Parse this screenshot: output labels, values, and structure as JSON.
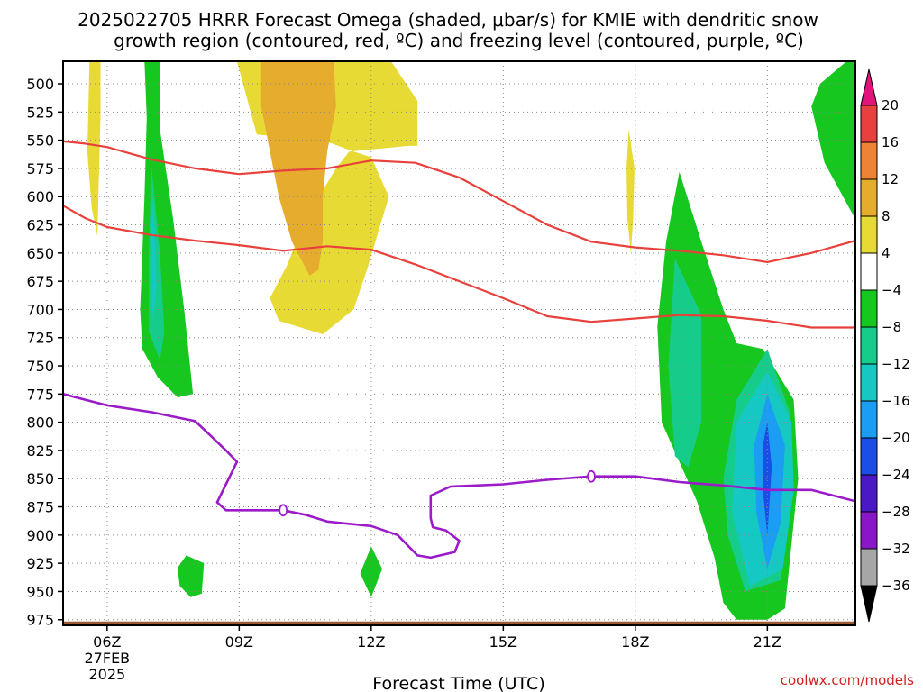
{
  "title_line1": "2025022705 HRRR Forecast Omega (shaded, μbar/s) for KMIE with dendritic snow",
  "title_line2": "growth region (contoured, red, ºC) and freezing level (contoured, purple, ºC)",
  "credit": "coolwx.com/models",
  "colors": {
    "snow_growth_line": "#e8413c",
    "freezing_line": "#9b1bc9",
    "ground": "#9b5a34",
    "grid": "#888888"
  },
  "chart_data": {
    "type": "heatmap",
    "title": "2025022705 HRRR Forecast Omega (shaded, μbar/s) for KMIE with dendritic snow growth region (contoured, red, ºC) and freezing level (contoured, purple, ºC)",
    "xlabel": "Forecast Time (UTC)",
    "ylabel": "",
    "x_unit": "hour UTC, 27 Feb 2025",
    "xlim": [
      5,
      23
    ],
    "y_unit": "pressure (mb)",
    "ylim": [
      980,
      480
    ],
    "y_ticks": [
      "500",
      "525",
      "550",
      "575",
      "600",
      "625",
      "650",
      "675",
      "700",
      "725",
      "750",
      "775",
      "800",
      "825",
      "850",
      "875",
      "900",
      "925",
      "950",
      "975"
    ],
    "x_ticks": [
      {
        "hour": 6,
        "label": "06Z",
        "sub": [
          "27FEB",
          "2025"
        ]
      },
      {
        "hour": 9,
        "label": "09Z"
      },
      {
        "hour": 12,
        "label": "12Z"
      },
      {
        "hour": 15,
        "label": "15Z"
      },
      {
        "hour": 18,
        "label": "18Z"
      },
      {
        "hour": 21,
        "label": "21Z"
      }
    ],
    "colorbar": {
      "levels": [
        "20",
        "16",
        "12",
        "8",
        "4",
        "−4",
        "−8",
        "−12",
        "−16",
        "−20",
        "−24",
        "−28",
        "−32",
        "−36"
      ],
      "colors": [
        "#e8403f",
        "#ee8236",
        "#e6ac2e",
        "#e7da34",
        "#ffffff",
        "#16c71f",
        "#16cc8a",
        "#16c8c4",
        "#1a9df2",
        "#1a4ee6",
        "#4a18c5",
        "#8a17c7",
        "#a6a6a6"
      ],
      "over_color": "#e0147a",
      "under_color": "#000000"
    },
    "omega_regions": [
      {
        "level": 4,
        "points": [
          [
            5.6,
            480
          ],
          [
            5.85,
            480
          ],
          [
            5.85,
            530
          ],
          [
            5.8,
            600
          ],
          [
            5.78,
            635
          ],
          [
            5.65,
            610
          ],
          [
            5.55,
            560
          ]
        ]
      },
      {
        "level": 4,
        "points": [
          [
            8.95,
            480
          ],
          [
            11.8,
            480
          ],
          [
            12.45,
            480
          ],
          [
            13.05,
            515
          ],
          [
            13.05,
            555
          ],
          [
            12.85,
            555
          ],
          [
            11.5,
            560
          ],
          [
            11.2,
            575
          ],
          [
            10.5,
            620
          ],
          [
            10.1,
            660
          ],
          [
            9.7,
            690
          ],
          [
            9.9,
            710
          ],
          [
            10.9,
            722
          ],
          [
            11.6,
            700
          ],
          [
            11.9,
            665
          ],
          [
            12.4,
            600
          ],
          [
            12.0,
            565
          ],
          [
            11.6,
            560
          ],
          [
            10.9,
            550
          ],
          [
            9.4,
            545
          ]
        ]
      },
      {
        "level": 8,
        "points": [
          [
            9.5,
            480
          ],
          [
            11.15,
            480
          ],
          [
            11.2,
            520
          ],
          [
            11.0,
            560
          ],
          [
            10.9,
            600
          ],
          [
            10.9,
            640
          ],
          [
            10.8,
            665
          ],
          [
            10.6,
            670
          ],
          [
            10.2,
            640
          ],
          [
            9.9,
            600
          ],
          [
            9.7,
            560
          ],
          [
            9.5,
            520
          ]
        ]
      },
      {
        "level": 4,
        "points": [
          [
            17.85,
            540
          ],
          [
            17.98,
            575
          ],
          [
            17.95,
            620
          ],
          [
            17.9,
            650
          ],
          [
            17.82,
            620
          ],
          [
            17.8,
            575
          ]
        ]
      },
      {
        "level": -4,
        "points": [
          [
            6.85,
            480
          ],
          [
            7.2,
            480
          ],
          [
            7.2,
            540
          ],
          [
            7.5,
            620
          ],
          [
            7.75,
            700
          ],
          [
            7.95,
            775
          ],
          [
            7.6,
            778
          ],
          [
            7.15,
            760
          ],
          [
            6.8,
            735
          ],
          [
            6.75,
            700
          ],
          [
            6.85,
            600
          ],
          [
            6.9,
            530
          ]
        ]
      },
      {
        "level": -8,
        "points": [
          [
            7.0,
            570
          ],
          [
            7.2,
            650
          ],
          [
            7.3,
            720
          ],
          [
            7.2,
            745
          ],
          [
            6.95,
            720
          ],
          [
            6.95,
            650
          ]
        ]
      },
      {
        "level": -12,
        "points": [
          [
            7.05,
            600
          ],
          [
            7.12,
            680
          ],
          [
            7.05,
            710
          ],
          [
            6.98,
            660
          ]
        ]
      },
      {
        "level": -4,
        "points": [
          [
            7.6,
            929
          ],
          [
            7.8,
            918
          ],
          [
            8.2,
            925
          ],
          [
            8.15,
            952
          ],
          [
            7.9,
            955
          ],
          [
            7.65,
            945
          ]
        ]
      },
      {
        "level": -4,
        "points": [
          [
            11.75,
            934
          ],
          [
            12.0,
            910
          ],
          [
            12.25,
            930
          ],
          [
            12.0,
            955
          ]
        ]
      },
      {
        "level": -4,
        "points": [
          [
            19.0,
            578
          ],
          [
            19.5,
            640
          ],
          [
            20.0,
            700
          ],
          [
            20.3,
            730
          ],
          [
            20.9,
            735
          ],
          [
            21.6,
            780
          ],
          [
            21.7,
            850
          ],
          [
            21.4,
            965
          ],
          [
            21.0,
            975
          ],
          [
            20.3,
            975
          ],
          [
            20.0,
            960
          ],
          [
            19.8,
            920
          ],
          [
            19.4,
            870
          ],
          [
            18.6,
            800
          ],
          [
            18.5,
            715
          ],
          [
            18.7,
            640
          ]
        ]
      },
      {
        "level": -8,
        "points": [
          [
            18.9,
            655
          ],
          [
            19.5,
            705
          ],
          [
            19.5,
            800
          ],
          [
            19.2,
            840
          ],
          [
            18.9,
            830
          ],
          [
            18.75,
            750
          ]
        ]
      },
      {
        "level": -8,
        "points": [
          [
            21.0,
            735
          ],
          [
            21.5,
            790
          ],
          [
            21.6,
            860
          ],
          [
            21.3,
            940
          ],
          [
            20.5,
            950
          ],
          [
            20.1,
            900
          ],
          [
            20.0,
            850
          ],
          [
            20.3,
            780
          ]
        ]
      },
      {
        "level": -12,
        "points": [
          [
            21.0,
            755
          ],
          [
            21.55,
            800
          ],
          [
            21.6,
            860
          ],
          [
            21.35,
            930
          ],
          [
            20.6,
            945
          ],
          [
            20.2,
            880
          ],
          [
            20.3,
            800
          ]
        ]
      },
      {
        "level": -16,
        "points": [
          [
            21.0,
            775
          ],
          [
            21.4,
            820
          ],
          [
            21.3,
            890
          ],
          [
            21.0,
            930
          ],
          [
            20.75,
            880
          ],
          [
            20.7,
            820
          ]
        ]
      },
      {
        "level": -20,
        "points": [
          [
            21.0,
            800
          ],
          [
            21.1,
            840
          ],
          [
            21.0,
            900
          ],
          [
            20.9,
            860
          ],
          [
            20.9,
            820
          ]
        ]
      },
      {
        "level": -4,
        "points": [
          [
            22.8,
            480
          ],
          [
            23.0,
            480
          ],
          [
            23.0,
            620
          ],
          [
            22.3,
            570
          ],
          [
            22.0,
            520
          ],
          [
            22.2,
            500
          ]
        ]
      }
    ],
    "series": [
      {
        "color": "red",
        "points": [
          [
            5,
            551
          ],
          [
            5.5,
            553
          ],
          [
            6,
            556
          ],
          [
            7,
            567
          ],
          [
            8,
            575
          ],
          [
            9,
            580
          ],
          [
            10,
            577
          ],
          [
            11,
            575
          ],
          [
            12,
            568
          ],
          [
            13,
            570
          ],
          [
            14,
            583
          ],
          [
            15,
            604
          ],
          [
            16,
            625
          ],
          [
            17,
            640
          ],
          [
            18,
            645
          ],
          [
            19,
            648
          ],
          [
            20,
            652
          ],
          [
            21,
            658
          ],
          [
            22,
            650
          ],
          [
            23,
            639
          ]
        ]
      },
      {
        "color": "red",
        "points": [
          [
            5,
            608
          ],
          [
            5.5,
            619
          ],
          [
            6,
            627
          ],
          [
            7,
            634
          ],
          [
            8,
            639
          ],
          [
            9,
            643
          ],
          [
            10,
            648
          ],
          [
            11,
            644
          ],
          [
            12,
            647
          ],
          [
            13,
            660
          ],
          [
            14,
            675
          ],
          [
            15,
            690
          ],
          [
            16,
            706
          ],
          [
            17,
            711
          ],
          [
            18,
            708
          ],
          [
            19,
            705
          ],
          [
            20,
            706
          ],
          [
            21,
            710
          ],
          [
            22,
            716
          ],
          [
            23,
            716
          ]
        ]
      },
      {
        "color": "purple",
        "label": "0",
        "points": [
          [
            5,
            775
          ],
          [
            5.5,
            780
          ],
          [
            6,
            785
          ],
          [
            7,
            791
          ],
          [
            8,
            799
          ],
          [
            8.3,
            810
          ],
          [
            8.7,
            825
          ],
          [
            8.95,
            835
          ],
          [
            8.7,
            855
          ],
          [
            8.5,
            871
          ],
          [
            8.7,
            878
          ],
          [
            9.3,
            878
          ],
          [
            10.0,
            878
          ],
          [
            10.5,
            882
          ],
          [
            11.0,
            888
          ],
          [
            12.0,
            892
          ],
          [
            12.6,
            900
          ],
          [
            13.05,
            918
          ],
          [
            13.35,
            920
          ],
          [
            13.9,
            915
          ],
          [
            14.0,
            905
          ],
          [
            13.7,
            896
          ],
          [
            13.4,
            893
          ],
          [
            13.35,
            885
          ],
          [
            13.35,
            865
          ],
          [
            13.8,
            857
          ],
          [
            15,
            855
          ],
          [
            16,
            851
          ],
          [
            17,
            848
          ],
          [
            18,
            848
          ],
          [
            19,
            853
          ],
          [
            20,
            856
          ],
          [
            21,
            860
          ],
          [
            22,
            860
          ],
          [
            23,
            870
          ]
        ]
      }
    ],
    "contour_labels": [
      {
        "text": "0",
        "x": 10.0,
        "y": 878
      },
      {
        "text": "0",
        "x": 17.0,
        "y": 848
      }
    ]
  }
}
